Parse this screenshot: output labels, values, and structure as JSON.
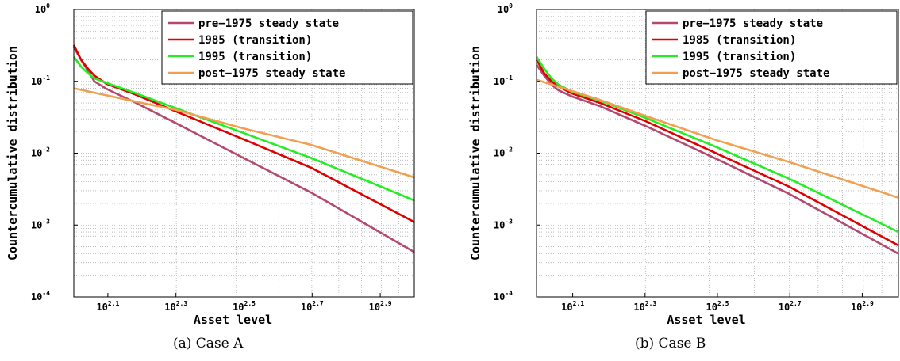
{
  "chart_data": [
    {
      "type": "line",
      "caption": "(a) Case A",
      "xlabel": "Asset level",
      "ylabel": "Countercumulative distribution",
      "xscale": "log",
      "yscale": "log",
      "xlim": [
        100,
        1000
      ],
      "ylim": [
        0.0001,
        1
      ],
      "grid": true,
      "legend": "top-right",
      "x_ticks": [
        {
          "base": "10",
          "exp": "2.1",
          "value": 125.89
        },
        {
          "base": "10",
          "exp": "2.3",
          "value": 199.53
        },
        {
          "base": "10",
          "exp": "2.5",
          "value": 316.23
        },
        {
          "base": "10",
          "exp": "2.7",
          "value": 501.19
        },
        {
          "base": "10",
          "exp": "2.9",
          "value": 794.33
        }
      ],
      "y_ticks": [
        {
          "base": "10",
          "exp": "-4",
          "value": 0.0001
        },
        {
          "base": "10",
          "exp": "-3",
          "value": 0.001
        },
        {
          "base": "10",
          "exp": "-2",
          "value": 0.01
        },
        {
          "base": "10",
          "exp": "-1",
          "value": 0.1
        },
        {
          "base": "10",
          "exp": "0",
          "value": 1
        }
      ],
      "series": [
        {
          "name": "pre−1975 steady state",
          "color": "#b5486e",
          "x": [
            100,
            105,
            110,
            115,
            125,
            150,
            200,
            316,
            500,
            1000
          ],
          "y": [
            0.3,
            0.2,
            0.14,
            0.1,
            0.078,
            0.052,
            0.026,
            0.0085,
            0.0028,
            0.00042
          ]
        },
        {
          "name": "1985 (transition)",
          "color": "#e00000",
          "x": [
            100,
            105,
            110,
            115,
            125,
            150,
            200,
            316,
            500,
            1000
          ],
          "y": [
            0.32,
            0.2,
            0.15,
            0.12,
            0.092,
            0.067,
            0.038,
            0.0155,
            0.0062,
            0.0011
          ]
        },
        {
          "name": "1995 (transition)",
          "color": "#22ee22",
          "x": [
            100,
            105,
            110,
            115,
            125,
            150,
            200,
            316,
            500,
            1000
          ],
          "y": [
            0.22,
            0.16,
            0.13,
            0.11,
            0.095,
            0.07,
            0.042,
            0.019,
            0.0085,
            0.0022
          ]
        },
        {
          "name": "post−1975 steady state",
          "color": "#f0a050",
          "x": [
            100,
            150,
            200,
            316,
            500,
            1000
          ],
          "y": [
            0.08,
            0.053,
            0.04,
            0.022,
            0.013,
            0.0046
          ]
        }
      ]
    },
    {
      "type": "line",
      "caption": "(b) Case B",
      "xlabel": "Asset level",
      "ylabel": "Countercumulative distribution",
      "xscale": "log",
      "yscale": "log",
      "xlim": [
        100,
        1000
      ],
      "ylim": [
        0.0001,
        1
      ],
      "grid": true,
      "legend": "top-right",
      "x_ticks": [
        {
          "base": "10",
          "exp": "2.1",
          "value": 125.89
        },
        {
          "base": "10",
          "exp": "2.3",
          "value": 199.53
        },
        {
          "base": "10",
          "exp": "2.5",
          "value": 316.23
        },
        {
          "base": "10",
          "exp": "2.7",
          "value": 501.19
        },
        {
          "base": "10",
          "exp": "2.9",
          "value": 794.33
        }
      ],
      "y_ticks": [
        {
          "base": "10",
          "exp": "-4",
          "value": 0.0001
        },
        {
          "base": "10",
          "exp": "-3",
          "value": 0.001
        },
        {
          "base": "10",
          "exp": "-2",
          "value": 0.01
        },
        {
          "base": "10",
          "exp": "-1",
          "value": 0.1
        },
        {
          "base": "10",
          "exp": "0",
          "value": 1
        }
      ],
      "series": [
        {
          "name": "pre−1975 steady state",
          "color": "#b5486e",
          "x": [
            100,
            105,
            110,
            115,
            125,
            150,
            200,
            316,
            500,
            1000
          ],
          "y": [
            0.17,
            0.12,
            0.09,
            0.075,
            0.062,
            0.045,
            0.024,
            0.0082,
            0.0027,
            0.0004
          ]
        },
        {
          "name": "1985 (transition)",
          "color": "#e00000",
          "x": [
            100,
            105,
            110,
            115,
            125,
            150,
            200,
            316,
            500,
            1000
          ],
          "y": [
            0.2,
            0.13,
            0.1,
            0.085,
            0.068,
            0.05,
            0.028,
            0.0098,
            0.0034,
            0.00052
          ]
        },
        {
          "name": "1995 (transition)",
          "color": "#22ee22",
          "x": [
            100,
            105,
            110,
            115,
            125,
            150,
            200,
            316,
            500,
            1000
          ],
          "y": [
            0.22,
            0.15,
            0.11,
            0.09,
            0.072,
            0.054,
            0.031,
            0.012,
            0.0044,
            0.0008
          ]
        },
        {
          "name": "post−1975 steady state",
          "color": "#f0a050",
          "x": [
            100,
            150,
            200,
            316,
            500,
            1000
          ],
          "y": [
            0.105,
            0.055,
            0.033,
            0.015,
            0.0075,
            0.0024
          ]
        }
      ]
    }
  ]
}
